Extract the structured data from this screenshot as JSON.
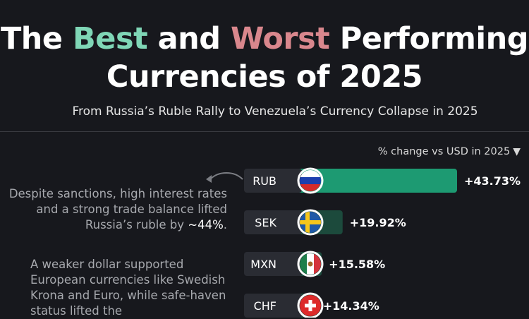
{
  "title": {
    "prefix": "The ",
    "best": "Best",
    "middle": " and ",
    "worst": "Worst",
    "suffix": " Performing",
    "line2": "Currencies of 2025",
    "best_color": "#7fd6b6",
    "worst_color": "#d9878d"
  },
  "subtitle": "From Russia’s Ruble Rally to Venezuela’s Currency Collapse in 2025",
  "axis_note": "% change vs USD in 2025",
  "axis_note_icon": "triangle-down-icon",
  "annotations": [
    {
      "text_before": "Despite sanctions, high interest rates and a strong trade balance lifted Russia’s ruble by ",
      "highlight": "~44%",
      "text_after": "."
    },
    {
      "text": "A weaker dollar supported European currencies like Swedish Krona and Euro, while safe-haven status lifted the"
    }
  ],
  "chart_data": {
    "type": "bar",
    "orientation": "horizontal",
    "xlabel": "% change vs USD in 2025",
    "categories": [
      "RUB",
      "SEK",
      "MXN",
      "CHF"
    ],
    "values": [
      43.73,
      19.92,
      15.58,
      14.34
    ],
    "value_labels": [
      "+43.73%",
      "+19.92%",
      "+15.58%",
      "+14.34%"
    ],
    "flags": [
      "russia-flag-icon",
      "sweden-flag-icon",
      "mexico-flag-icon",
      "switzerland-flag-icon"
    ],
    "colors": {
      "top_bar": "#1d9a72",
      "other_bars": "#1c4a3c",
      "label_bg": "#2a2c33"
    }
  }
}
